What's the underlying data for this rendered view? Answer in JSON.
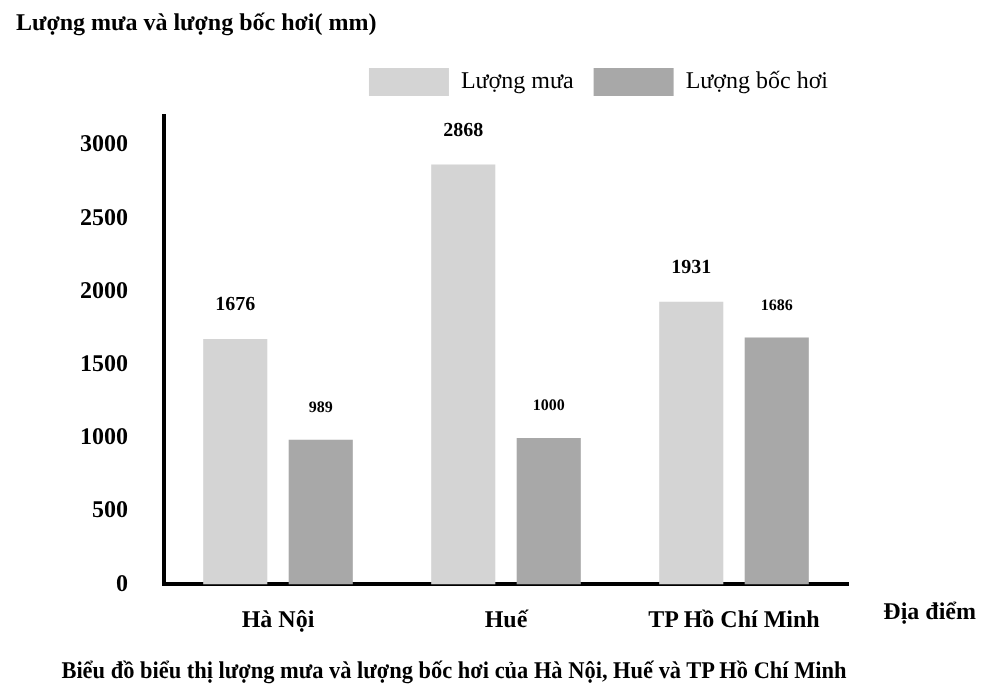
{
  "chart_data": {
    "type": "bar",
    "title": "Biểu đồ biểu thị lượng mưa và lượng bốc hơi của Hà Nội, Huế và TP Hồ Chí Minh",
    "ylabel": "Lượng mưa và lượng bốc hơi( mm)",
    "xlabel": "Địa điểm",
    "categories": [
      "Hà Nội",
      "Huế",
      "TP Hồ Chí Minh"
    ],
    "series": [
      {
        "name": "Lượng mưa",
        "color": "#d4d4d4",
        "values": [
          1676,
          2868,
          1931
        ]
      },
      {
        "name": "Lượng bốc hơi",
        "color": "#a8a8a8",
        "values": [
          989,
          1000,
          1686
        ]
      }
    ],
    "ylim": [
      0,
      3200
    ],
    "yticks": [
      0,
      500,
      1000,
      1500,
      2000,
      2500,
      3000
    ],
    "grid": false,
    "legend": "top right",
    "data_labels": true
  }
}
